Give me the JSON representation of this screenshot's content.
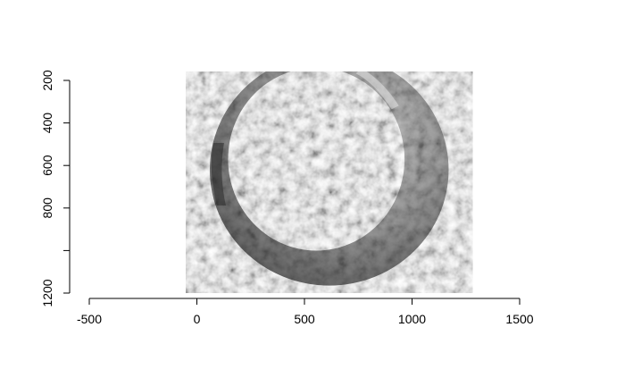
{
  "chart_data": {
    "type": "heatmap",
    "title": "",
    "xlabel": "",
    "ylabel": "",
    "xlim": [
      -500,
      1500
    ],
    "ylim": [
      0,
      1200
    ],
    "y_reversed": true,
    "x_ticks": [
      -500,
      0,
      500,
      1000,
      1500
    ],
    "x_tick_labels": [
      "-500",
      "0",
      "500",
      "1000",
      "1500"
    ],
    "y_ticks": [
      200,
      400,
      600,
      800,
      1000,
      1200
    ],
    "y_tick_labels": [
      "200",
      "400",
      "600",
      "800",
      "",
      "1200"
    ],
    "image": {
      "description_colormap": "grayscale",
      "shape": "annulus",
      "outer_ring": {
        "cx": 615,
        "cy": 620,
        "rx": 555,
        "ry": 545
      },
      "inner_hole": {
        "cx": 555,
        "cy": 570,
        "rx": 410,
        "ry": 430
      },
      "colors": {
        "dark": "#2a2a2a",
        "mid": "#707070",
        "light": "#c8c8c8",
        "highlight": "#f2f2f2"
      }
    }
  }
}
